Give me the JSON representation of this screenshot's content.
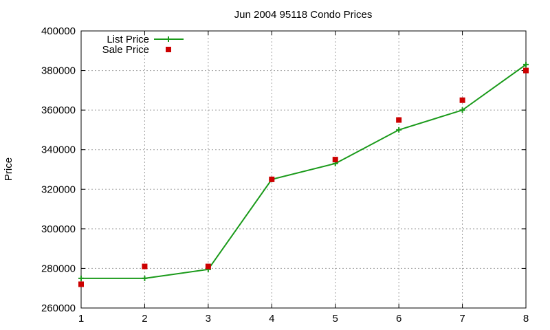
{
  "chart_data": {
    "type": "line",
    "title": "Jun 2004 95118 Condo Prices",
    "xlabel": "",
    "ylabel": "Price",
    "x": [
      1,
      2,
      3,
      4,
      5,
      6,
      7,
      8
    ],
    "xlim": [
      1,
      8
    ],
    "ylim": [
      260000,
      400000
    ],
    "xticks": [
      "1",
      "2",
      "3",
      "4",
      "5",
      "6",
      "7",
      "8"
    ],
    "yticks": [
      "260000",
      "280000",
      "300000",
      "320000",
      "340000",
      "360000",
      "380000",
      "400000"
    ],
    "grid": true,
    "legend_position": "top-left",
    "series": [
      {
        "name": "List Price",
        "style": "line-with-plus-markers",
        "color": "#1a9a1a",
        "values": [
          275000,
          275000,
          279500,
          325000,
          333000,
          350000,
          360000,
          383000
        ]
      },
      {
        "name": "Sale Price",
        "style": "square-markers",
        "color": "#cc0000",
        "values": [
          272000,
          281000,
          281000,
          325000,
          335000,
          355000,
          365000,
          380000
        ]
      }
    ]
  }
}
